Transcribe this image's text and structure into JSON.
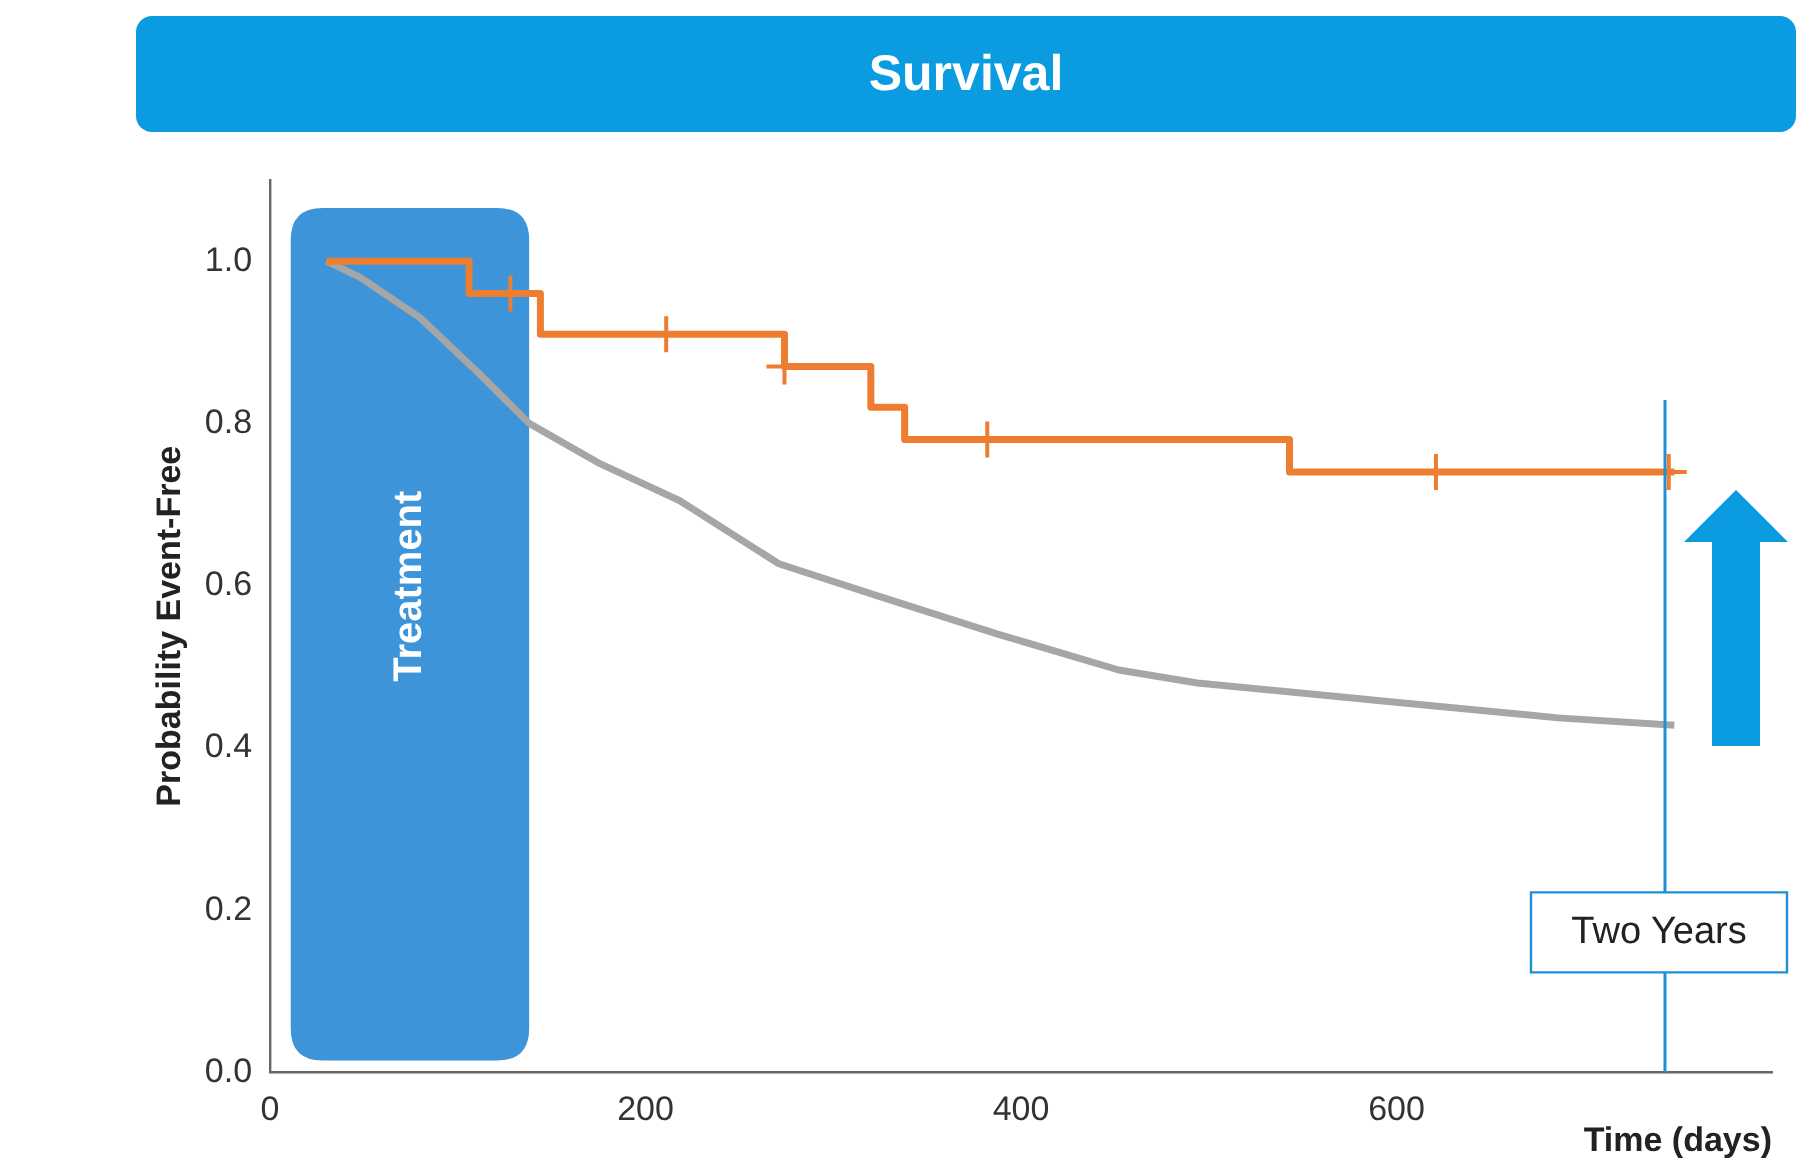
{
  "chart_data": {
    "type": "step",
    "title": "Survival",
    "xlabel": "Time (days)",
    "ylabel": "Probability Event-Free",
    "xlim": [
      0,
      800
    ],
    "xticks": [
      0,
      200,
      400,
      600
    ],
    "ylim": [
      0,
      1.1
    ],
    "yticks": [
      {
        "value": 0,
        "label": "0.0"
      },
      {
        "value": 0.2,
        "label": "0.2"
      },
      {
        "value": 0.4,
        "label": "0.4"
      },
      {
        "value": 0.6,
        "label": "0.6"
      },
      {
        "value": 0.8,
        "label": "0.8"
      },
      {
        "value": 1,
        "label": "1.0"
      }
    ],
    "grid": false,
    "legend": false,
    "marker": "none",
    "line_style": "solid",
    "series": [
      {
        "color": "#ed7d31",
        "x": [
          30,
          106,
          144,
          274,
          320,
          338,
          543,
          748
        ],
        "values": [
          1.0,
          0.96,
          0.91,
          0.87,
          0.82,
          0.78,
          0.74,
          0.74
        ]
      },
      {
        "type": "scatter",
        "color": "#ed7d31",
        "marker": "cross",
        "x": [
          128,
          211,
          274,
          382,
          621,
          745
        ],
        "values": [
          0.96,
          0.91,
          0.87,
          0.78,
          0.74,
          0.74
        ]
      },
      {
        "type": "line",
        "color": "#a6a6a6",
        "x": [
          30,
          48,
          80,
          112,
          138,
          176,
          218,
          271,
          324,
          388,
          452,
          494,
          601,
          686,
          748
        ],
        "values": [
          1.0,
          0.98,
          0.93,
          0.86,
          0.8,
          0.75,
          0.705,
          0.627,
          0.587,
          0.54,
          0.496,
          0.48,
          0.456,
          0.437,
          0.428
        ]
      }
    ],
    "bands": [
      {
        "axis": "x",
        "from": 11,
        "to": 138,
        "label": "Treatment",
        "color": "#3d94d9"
      }
    ],
    "ref_lines": [
      {
        "axis": "x",
        "value": 743,
        "label": "Two Years",
        "color": "#1f8fd6"
      }
    ]
  }
}
